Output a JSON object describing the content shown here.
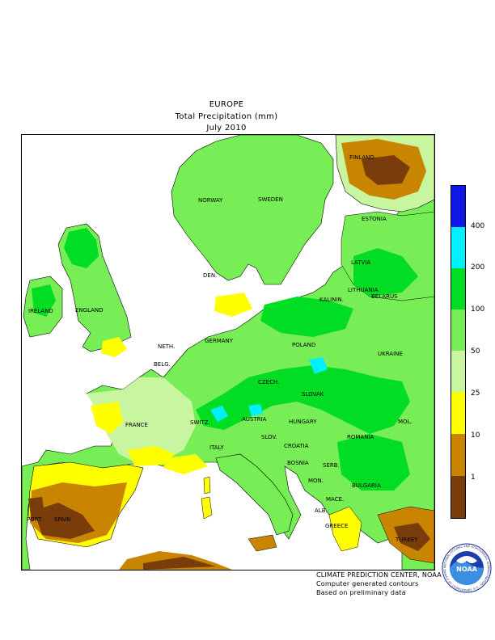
{
  "header": {
    "region": "EUROPE",
    "variable": "Total Precipitation (mm)",
    "period": "July 2010"
  },
  "map": {
    "country_labels": [
      "FINLAND",
      "NORWAY",
      "SWEDEN",
      "ESTONIA",
      "LATVIA",
      "DEN.",
      "LITHUANIA",
      "KALININ.",
      "BELARUS",
      "IRELAND",
      "ENGLAND",
      "NETH.",
      "GERMANY",
      "POLAND",
      "BELG.",
      "CZECH.",
      "UKRAINE",
      "SLOVAK",
      "FRANCE",
      "SWITZ.",
      "AUSTRIA",
      "HUNGARY",
      "MOL.",
      "ITALY",
      "SLOV.",
      "CROATIA",
      "ROMANIA",
      "BOSNIA",
      "SERB.",
      "MON.",
      "BULGARIA",
      "PORT.",
      "SPAIN",
      "MACE.",
      "ALB.",
      "GREECE",
      "TURKEY"
    ]
  },
  "legend": {
    "labels": [
      "400",
      "200",
      "100",
      "50",
      "25",
      "10",
      "1"
    ],
    "colors": {
      "gt400": "#0d18e6",
      "c200_400": "#00f0ff",
      "c100_200": "#00dd22",
      "c50_100": "#77ee55",
      "c25_50": "#c8f5a0",
      "c10_25": "#ffff00",
      "c1_10": "#c98400",
      "lt1": "#7a3c0a"
    }
  },
  "credits": {
    "line1": "CLIMATE PREDICTION CENTER, NOAA",
    "line2": "Computer generated contours",
    "line3": "Based on preliminary data"
  },
  "logo": {
    "text": "NOAA",
    "ring_text": "NATIONAL OCEANIC AND ATMOSPHERIC ADMINISTRATION · U.S. DEPARTMENT OF COMMERCE"
  }
}
